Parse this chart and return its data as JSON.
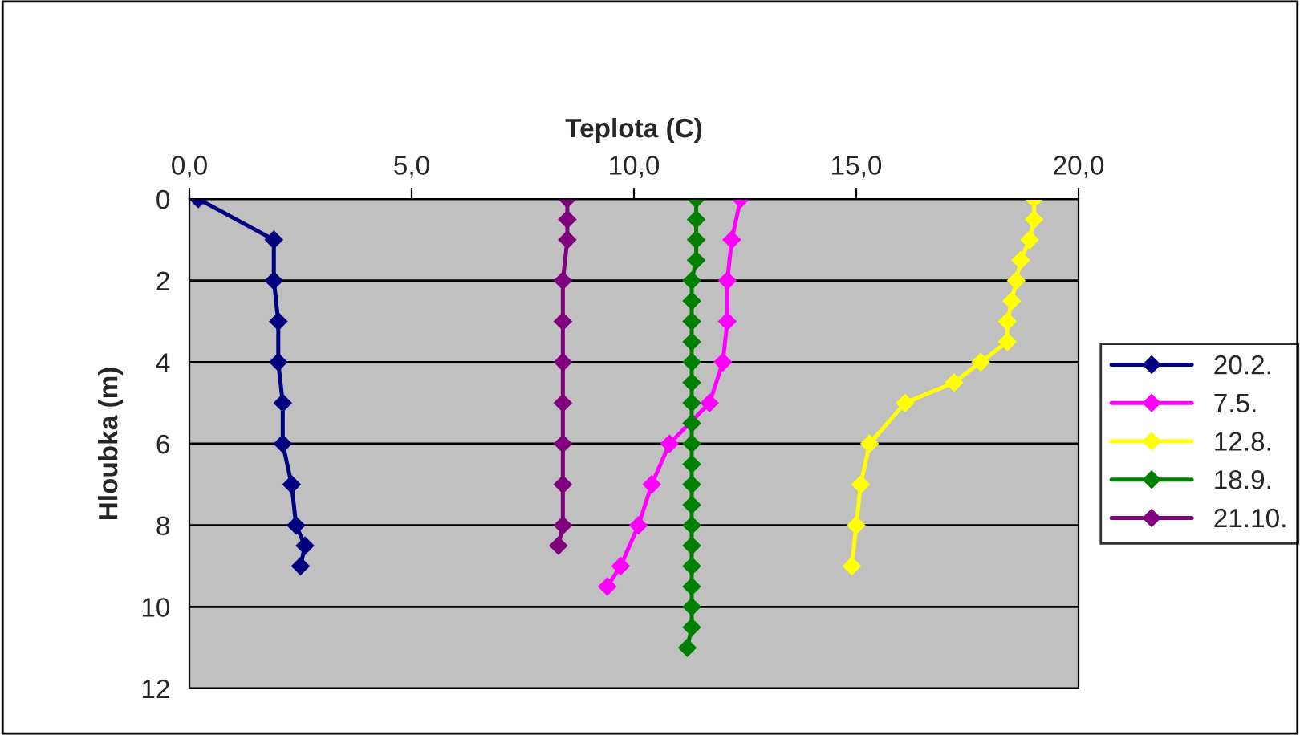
{
  "chart_data": {
    "type": "line",
    "xlabel": "Teplota (C)",
    "ylabel": "Hloubka (m)",
    "xlim": [
      0,
      20
    ],
    "xticks": [
      {
        "value": 0,
        "label": "0,0"
      },
      {
        "value": 5,
        "label": "5,0"
      },
      {
        "value": 10,
        "label": "10,0"
      },
      {
        "value": 15,
        "label": "15,0"
      },
      {
        "value": 20,
        "label": "20,0"
      }
    ],
    "ylim": [
      12,
      0
    ],
    "yticks": [
      0,
      2,
      4,
      6,
      8,
      10,
      12
    ],
    "grid": "y",
    "legend": "right",
    "marker": "diamond",
    "line_style": "solid",
    "series": [
      {
        "name": "20.2.",
        "color": "#000080",
        "x": [
          0.2,
          1.9,
          1.9,
          2.0,
          2.0,
          2.1,
          2.1,
          2.3,
          2.4,
          2.6,
          2.5
        ],
        "values": [
          0,
          1,
          2,
          3,
          4,
          5,
          6,
          7,
          8,
          8.5,
          9
        ]
      },
      {
        "name": "7.5.",
        "color": "#ff00ff",
        "x": [
          12.4,
          12.2,
          12.1,
          12.1,
          12.0,
          11.7,
          10.8,
          10.4,
          10.1,
          9.7,
          9.4
        ],
        "values": [
          0,
          1,
          2,
          3,
          4,
          5,
          6,
          7,
          8,
          9,
          9.5
        ]
      },
      {
        "name": "12.8.",
        "color": "#ffff00",
        "x": [
          19.0,
          19.0,
          18.9,
          18.7,
          18.6,
          18.5,
          18.4,
          18.4,
          17.8,
          17.2,
          16.1,
          15.3,
          15.1,
          15.0,
          14.9
        ],
        "values": [
          0,
          0.5,
          1,
          1.5,
          2,
          2.5,
          3,
          3.5,
          4,
          4.5,
          5,
          6,
          7,
          8,
          9
        ]
      },
      {
        "name": "18.9.",
        "color": "#008000",
        "x": [
          11.4,
          11.4,
          11.4,
          11.4,
          11.3,
          11.3,
          11.3,
          11.3,
          11.3,
          11.3,
          11.3,
          11.3,
          11.3,
          11.3,
          11.3,
          11.3,
          11.3,
          11.3,
          11.3,
          11.3,
          11.3,
          11.3,
          11.2
        ],
        "values": [
          0,
          0.5,
          1,
          1.5,
          2,
          2.5,
          3,
          3.5,
          4,
          4.5,
          5,
          5.5,
          6,
          6.5,
          7,
          7.5,
          8,
          8.5,
          9,
          9.5,
          10,
          10.5,
          11
        ]
      },
      {
        "name": "21.10.",
        "color": "#800080",
        "x": [
          8.5,
          8.5,
          8.5,
          8.4,
          8.4,
          8.4,
          8.4,
          8.4,
          8.4,
          8.4,
          8.3
        ],
        "values": [
          0,
          0.5,
          1,
          2,
          3,
          4,
          5,
          6,
          7,
          8,
          8.5
        ]
      }
    ]
  }
}
